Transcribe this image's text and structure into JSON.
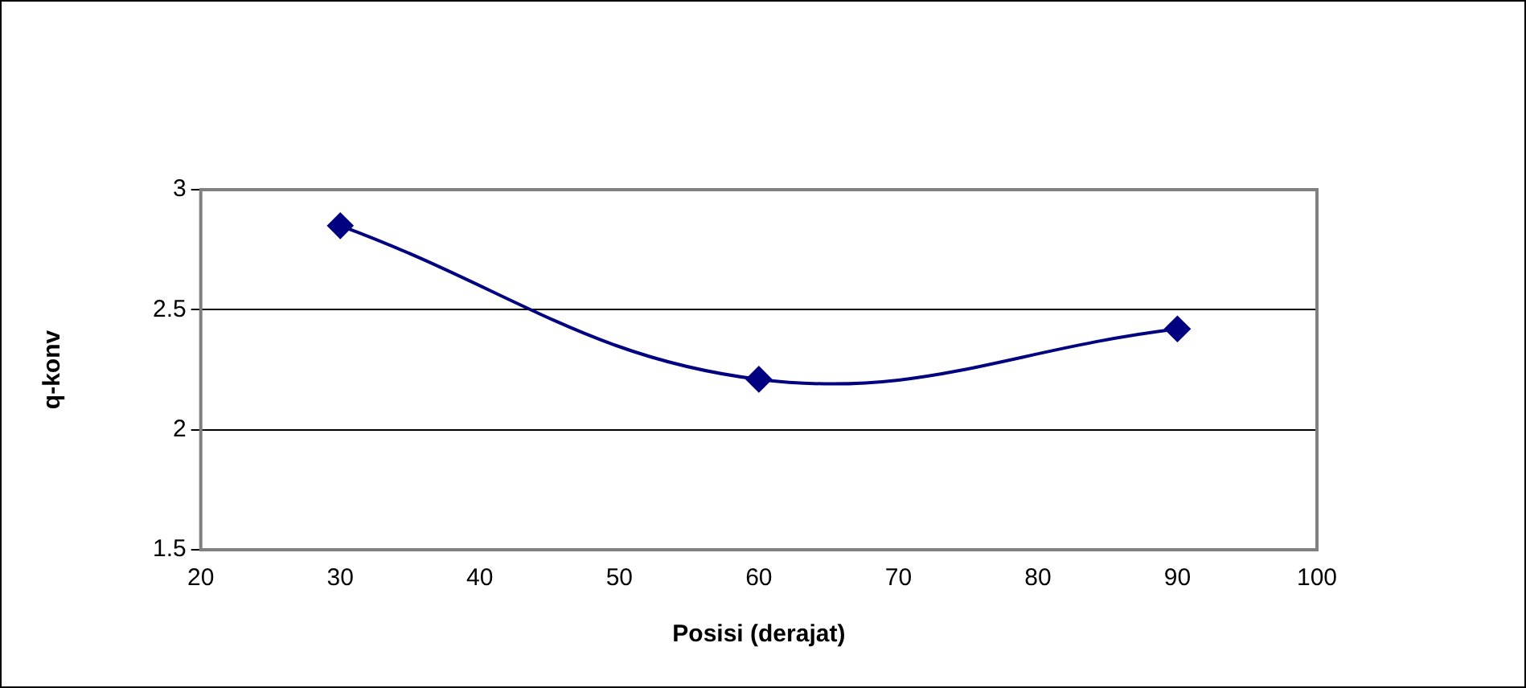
{
  "chart_data": {
    "type": "line",
    "xlabel": "Posisi (derajat)",
    "ylabel": "q-konv",
    "x": [
      30,
      60,
      90
    ],
    "series": [
      {
        "color": "#000080",
        "values": [
          2.85,
          2.21,
          2.42
        ]
      }
    ],
    "xlim": [
      20,
      100
    ],
    "xticks": [
      20,
      30,
      40,
      50,
      60,
      70,
      80,
      90,
      100
    ],
    "ylim": [
      1.5,
      3
    ],
    "yticks": [
      1.5,
      2,
      2.5,
      3
    ],
    "grid": "y",
    "legend": false,
    "marker": "diamond",
    "line_style": "solid"
  }
}
